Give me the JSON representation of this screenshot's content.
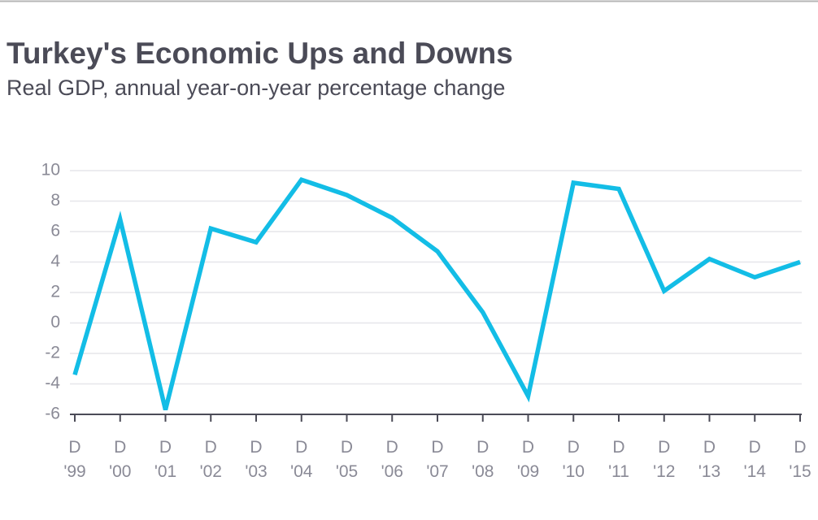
{
  "chart_data": {
    "type": "line",
    "title": "Turkey's Economic Ups and Downs",
    "subtitle": "Real GDP, annual year-on-year percentage change",
    "categories": [
      "D '99",
      "D '00",
      "D '01",
      "D '02",
      "D '03",
      "D '04",
      "D '05",
      "D '06",
      "D '07",
      "D '08",
      "D '09",
      "D '10",
      "D '11",
      "D '12",
      "D '13",
      "D '14",
      "D '15"
    ],
    "series": [
      {
        "color": "#13bde6",
        "values": [
          -3.4,
          6.8,
          -5.7,
          6.2,
          5.3,
          9.4,
          8.4,
          6.9,
          4.7,
          0.7,
          -4.8,
          9.2,
          8.8,
          2.1,
          4.2,
          3.0,
          4.0
        ]
      }
    ],
    "ylim": [
      -6,
      10
    ],
    "yticks": [
      -6,
      -4,
      -2,
      0,
      2,
      4,
      6,
      8,
      10
    ],
    "grid": true
  }
}
